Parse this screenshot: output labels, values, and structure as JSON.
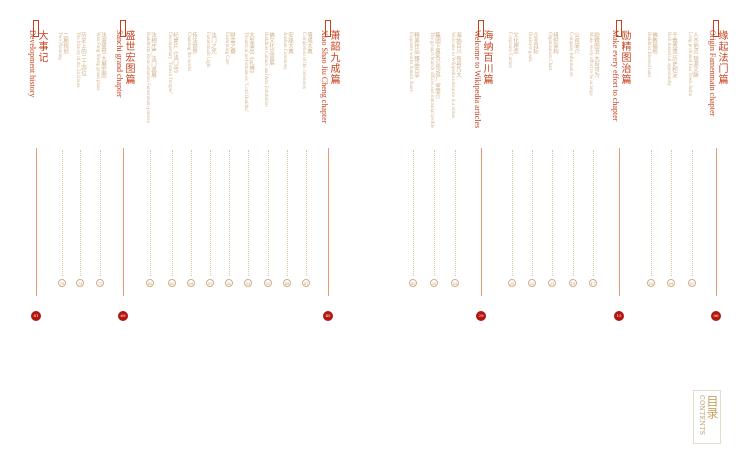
{
  "colors": {
    "accent": "#c8401e",
    "text_muted": "#cfae85",
    "dot": "#b5140f"
  },
  "contents": {
    "zh": "目录",
    "en": "CONTENTS"
  },
  "chapters": [
    {
      "zh": "缘起法门篇",
      "en": "Origin Famenmain chapter",
      "page": "06",
      "items": [
        {
          "zh": "人杰地灵 琼源文脉",
          "en": "Long profound Jisu Town Jushu",
          "page": "07"
        },
        {
          "zh": "千载悠悠 历史积淀",
          "en": "Rich historical opportunity",
          "page": "09"
        },
        {
          "zh": "佛教福地",
          "en": "Buddhist Blessed land",
          "page": "10"
        }
      ]
    },
    {
      "zh": "励精图治篇",
      "en": "Make every effort to chapter",
      "page": "15",
      "items": [
        {
          "zh": "励精图治 大有可为",
          "en": "Make every effort to be as large",
          "page": "17"
        },
        {
          "zh": "公司简介",
          "en": "Company Information",
          "page": "19"
        },
        {
          "zh": "组织架构",
          "en": "Organization Chart",
          "page": "21"
        },
        {
          "zh": "企业目标",
          "en": "Business goals",
          "page": "23"
        },
        {
          "zh": "文化理念",
          "en": "Corporate Culture",
          "page": "25"
        }
      ]
    },
    {
      "zh": "海纳百川篇",
      "en": "Welcome to Wikipedia articles",
      "page": "29",
      "items": [
        {
          "zh": "海纳百川 有容乃大",
          "en": "Welcome to Wikipedia tolerance is a virtue",
          "page": "31"
        },
        {
          "zh": "集团下属各公司及厂 室简介",
          "en": "The group's branch offices and industrial profile",
          "page": "35"
        },
        {
          "zh": "精美作品 臻品共享",
          "en": "Exquisite works Sunshi Share",
          "page": "41"
        }
      ]
    },
    {
      "zh": "萧韶九成篇",
      "en": "Xiao Shao Jiu Cheng chapter",
      "page": "45",
      "items": [
        {
          "zh": "落成大典",
          "en": "Completion of the ceremony",
          "page": "47"
        },
        {
          "zh": "安座大典",
          "en": "Anshun Ceremony",
          "page": "49"
        },
        {
          "zh": "佛文化交流展",
          "en": "Buddhist Culture and Arts Exhibition",
          "page": "51"
        },
        {
          "zh": "大型演出《礼佛》",
          "en": "Theatrical performances \"Lord Buddha\"",
          "page": "53"
        },
        {
          "zh": "财富之眷",
          "en": "Enshrining Care",
          "page": "55"
        },
        {
          "zh": "法门之光",
          "en": "Famenmain Light",
          "page": "57"
        },
        {
          "zh": "传法世界",
          "en": "Chanting the world",
          "page": "59"
        },
        {
          "zh": "纪录片《法门寺》",
          "en": "Documentary \"Famen Temple\"",
          "page": "61"
        },
        {
          "zh": "法相庄严 法门巡展",
          "en": "Buddhism Reincarnation Famenmain journey",
          "page": "63"
        }
      ]
    },
    {
      "zh": "盛世宏图篇",
      "en": "Sanchi grand chapter",
      "page": "69",
      "items": [
        {
          "zh": "法道盛世 大展宏图",
          "en": "Wan Fang Sheng grand plans",
          "page": "71"
        },
        {
          "zh": "历史上的二十四位",
          "en": "The history of the 24 Hours",
          "page": "73"
        },
        {
          "zh": "二期规划",
          "en": "Two Planning",
          "page": "75"
        }
      ]
    },
    {
      "zh": "大事记",
      "en": "Development history",
      "page": "81",
      "items": []
    }
  ]
}
